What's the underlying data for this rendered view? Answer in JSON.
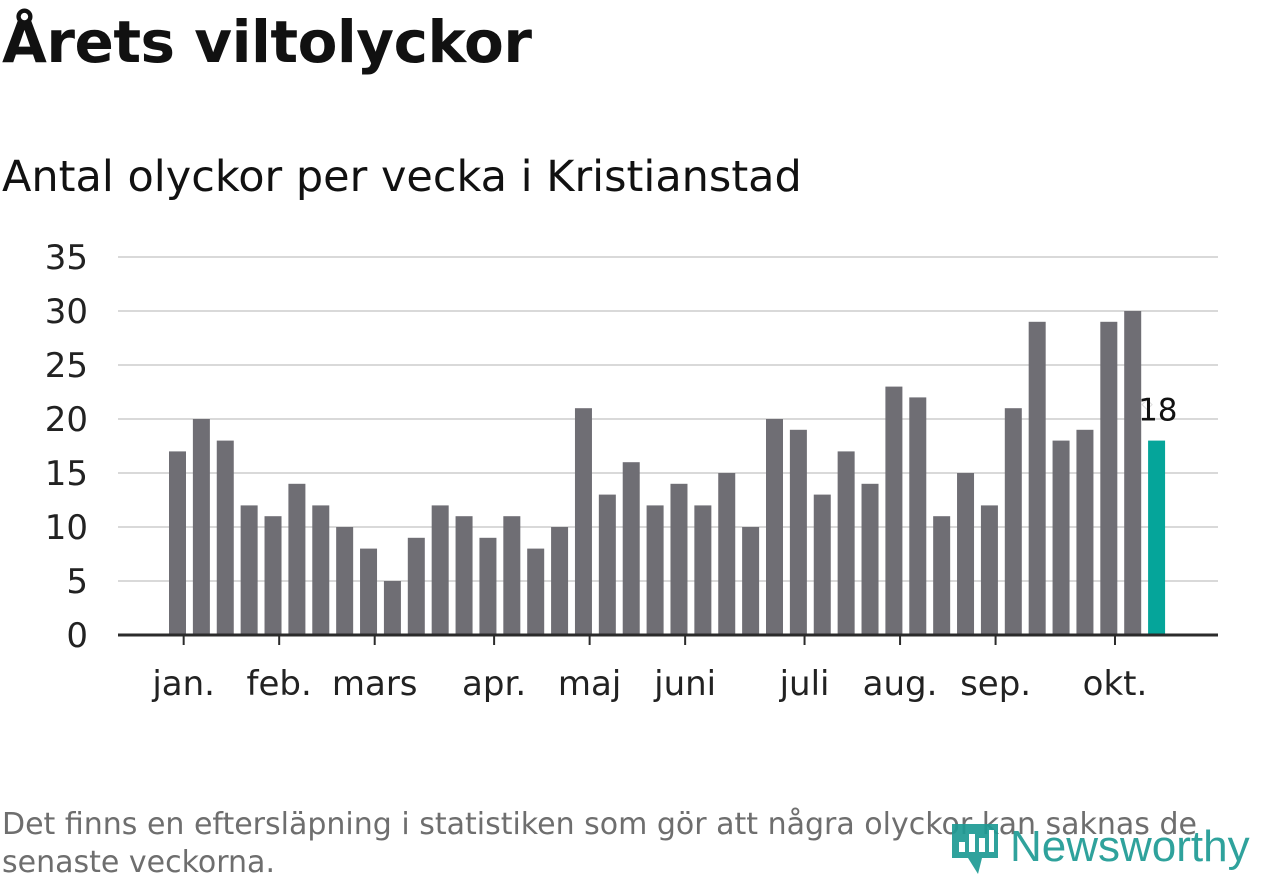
{
  "title": "Årets viltolyckor",
  "subtitle": "Antal olyckor per vecka i Kristianstad",
  "note": "Det finns en eftersläpning i statistiken som gör att några olyckor kan saknas de senaste veckorna.",
  "logo": {
    "text": "Newsworthy",
    "icon": "newsworthy-logo-icon"
  },
  "colors": {
    "bar": "#6f6e74",
    "highlight": "#05a59a",
    "grid": "#d9d9d9",
    "axis": "#2b2b2b",
    "text": "#111111",
    "note": "#6e6e6e"
  },
  "chart_data": {
    "type": "bar",
    "title": "Antal olyckor per vecka i Kristianstad",
    "xlabel": "",
    "ylabel": "",
    "ylim": [
      0,
      35
    ],
    "yticks": [
      0,
      5,
      10,
      15,
      20,
      25,
      30,
      35
    ],
    "values": [
      17,
      20,
      18,
      12,
      11,
      14,
      12,
      10,
      8,
      5,
      9,
      12,
      11,
      9,
      11,
      8,
      10,
      21,
      13,
      16,
      12,
      14,
      12,
      15,
      10,
      20,
      19,
      13,
      17,
      14,
      23,
      22,
      11,
      15,
      12,
      21,
      29,
      18,
      19,
      29,
      30,
      18
    ],
    "highlight_index": 41,
    "highlight_label": "18",
    "month_labels": [
      {
        "label": "jan.",
        "bar_index": 0.3
      },
      {
        "label": "feb.",
        "bar_index": 4.3
      },
      {
        "label": "mars",
        "bar_index": 8.3
      },
      {
        "label": "apr.",
        "bar_index": 13.3
      },
      {
        "label": "maj",
        "bar_index": 17.3
      },
      {
        "label": "juni",
        "bar_index": 21.3
      },
      {
        "label": "juli",
        "bar_index": 26.3
      },
      {
        "label": "aug.",
        "bar_index": 30.3
      },
      {
        "label": "sep.",
        "bar_index": 34.3
      },
      {
        "label": "okt.",
        "bar_index": 39.3
      }
    ],
    "grid": true
  }
}
